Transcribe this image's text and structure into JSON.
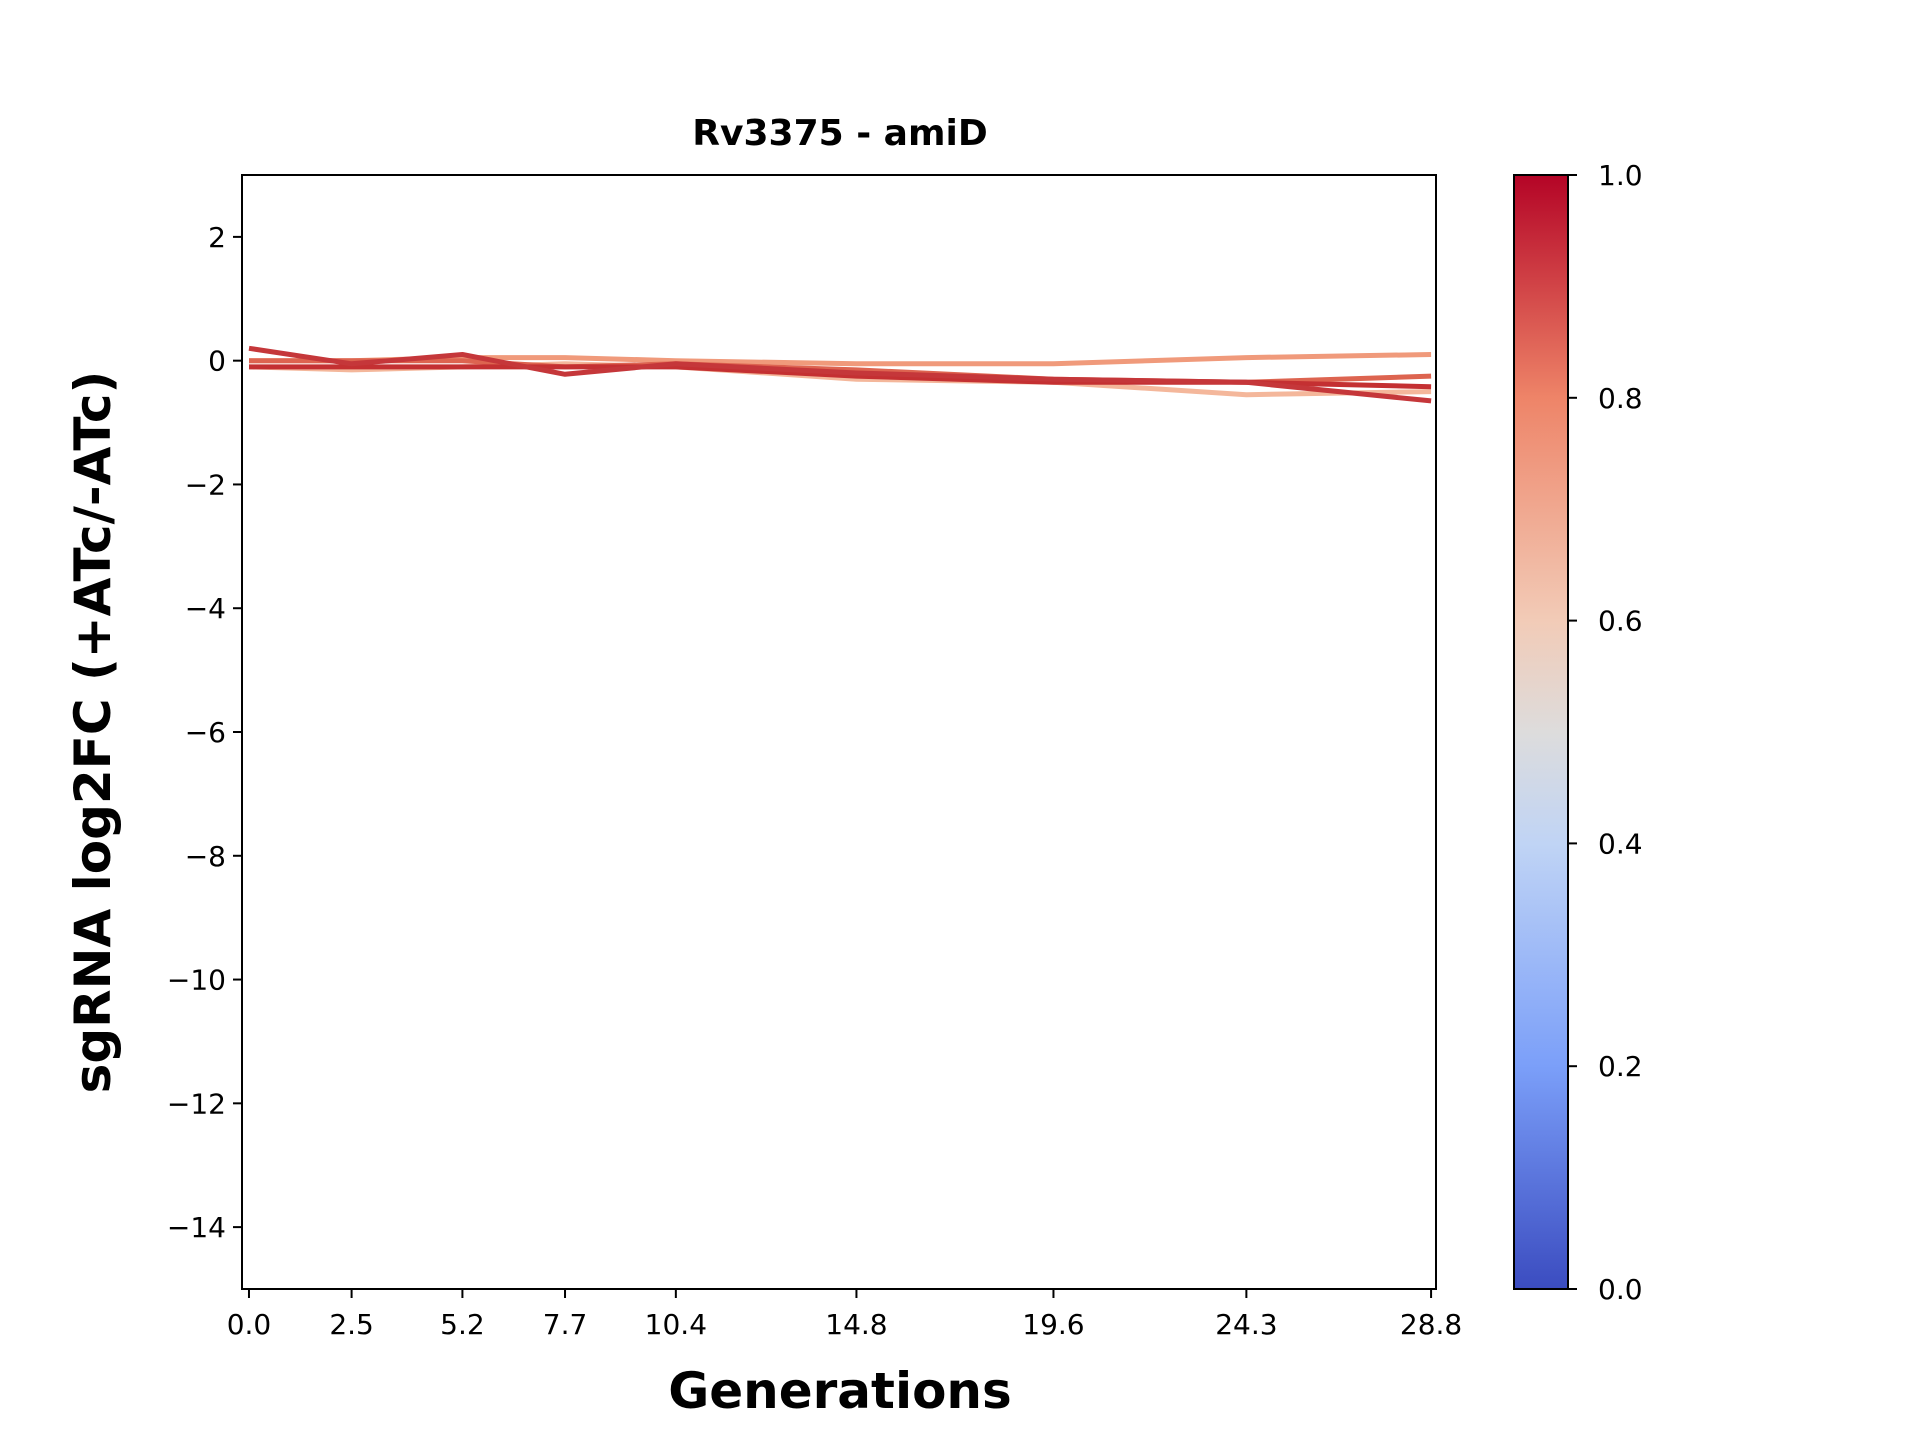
{
  "chart_data": {
    "type": "line",
    "title": "Rv3375 - amiD",
    "xlabel": "Generations",
    "ylabel": "sgRNA log2FC (+ATc/-ATc)",
    "x": [
      0.0,
      2.5,
      5.2,
      7.7,
      10.4,
      14.8,
      19.6,
      24.3,
      28.8
    ],
    "x_tick_labels": [
      "0.0",
      "2.5",
      "5.2",
      "7.7",
      "10.4",
      "14.8",
      "19.6",
      "24.3",
      "28.8"
    ],
    "ylim": [
      -15,
      3
    ],
    "xlim": [
      -0.17,
      28.92
    ],
    "y_ticks": [
      2,
      0,
      -2,
      -4,
      -6,
      -8,
      -10,
      -12,
      -14
    ],
    "y_tick_labels": [
      "2",
      "0",
      "−2",
      "−4",
      "−6",
      "−8",
      "−10",
      "−12",
      "−14"
    ],
    "grid": false,
    "series": [
      {
        "color": "#f4b79b",
        "values": [
          -0.1,
          -0.15,
          -0.1,
          -0.05,
          -0.1,
          -0.3,
          -0.35,
          -0.55,
          -0.5
        ]
      },
      {
        "color": "#f09a7b",
        "values": [
          0.0,
          0.0,
          0.05,
          0.05,
          0.0,
          -0.05,
          -0.05,
          0.05,
          0.1
        ]
      },
      {
        "color": "#dd6450",
        "values": [
          0.0,
          0.0,
          0.0,
          -0.1,
          -0.05,
          -0.15,
          -0.3,
          -0.35,
          -0.25
        ]
      },
      {
        "color": "#c43032",
        "values": [
          -0.1,
          -0.1,
          -0.1,
          -0.1,
          -0.1,
          -0.25,
          -0.35,
          -0.35,
          -0.42
        ]
      },
      {
        "color": "#c5373a",
        "values": [
          0.2,
          -0.05,
          0.1,
          -0.22,
          -0.05,
          -0.2,
          -0.3,
          -0.35,
          -0.65
        ]
      }
    ],
    "colorbar": {
      "colormap": "coolwarm",
      "range": [
        0,
        1
      ],
      "tick_labels": [
        "0.0",
        "0.2",
        "0.4",
        "0.6",
        "0.8",
        "1.0"
      ],
      "colors": [
        "#3b4cc0",
        "#7b9ff9",
        "#c0d4f5",
        "#f2cbb7",
        "#ee8468",
        "#b40426"
      ]
    }
  }
}
